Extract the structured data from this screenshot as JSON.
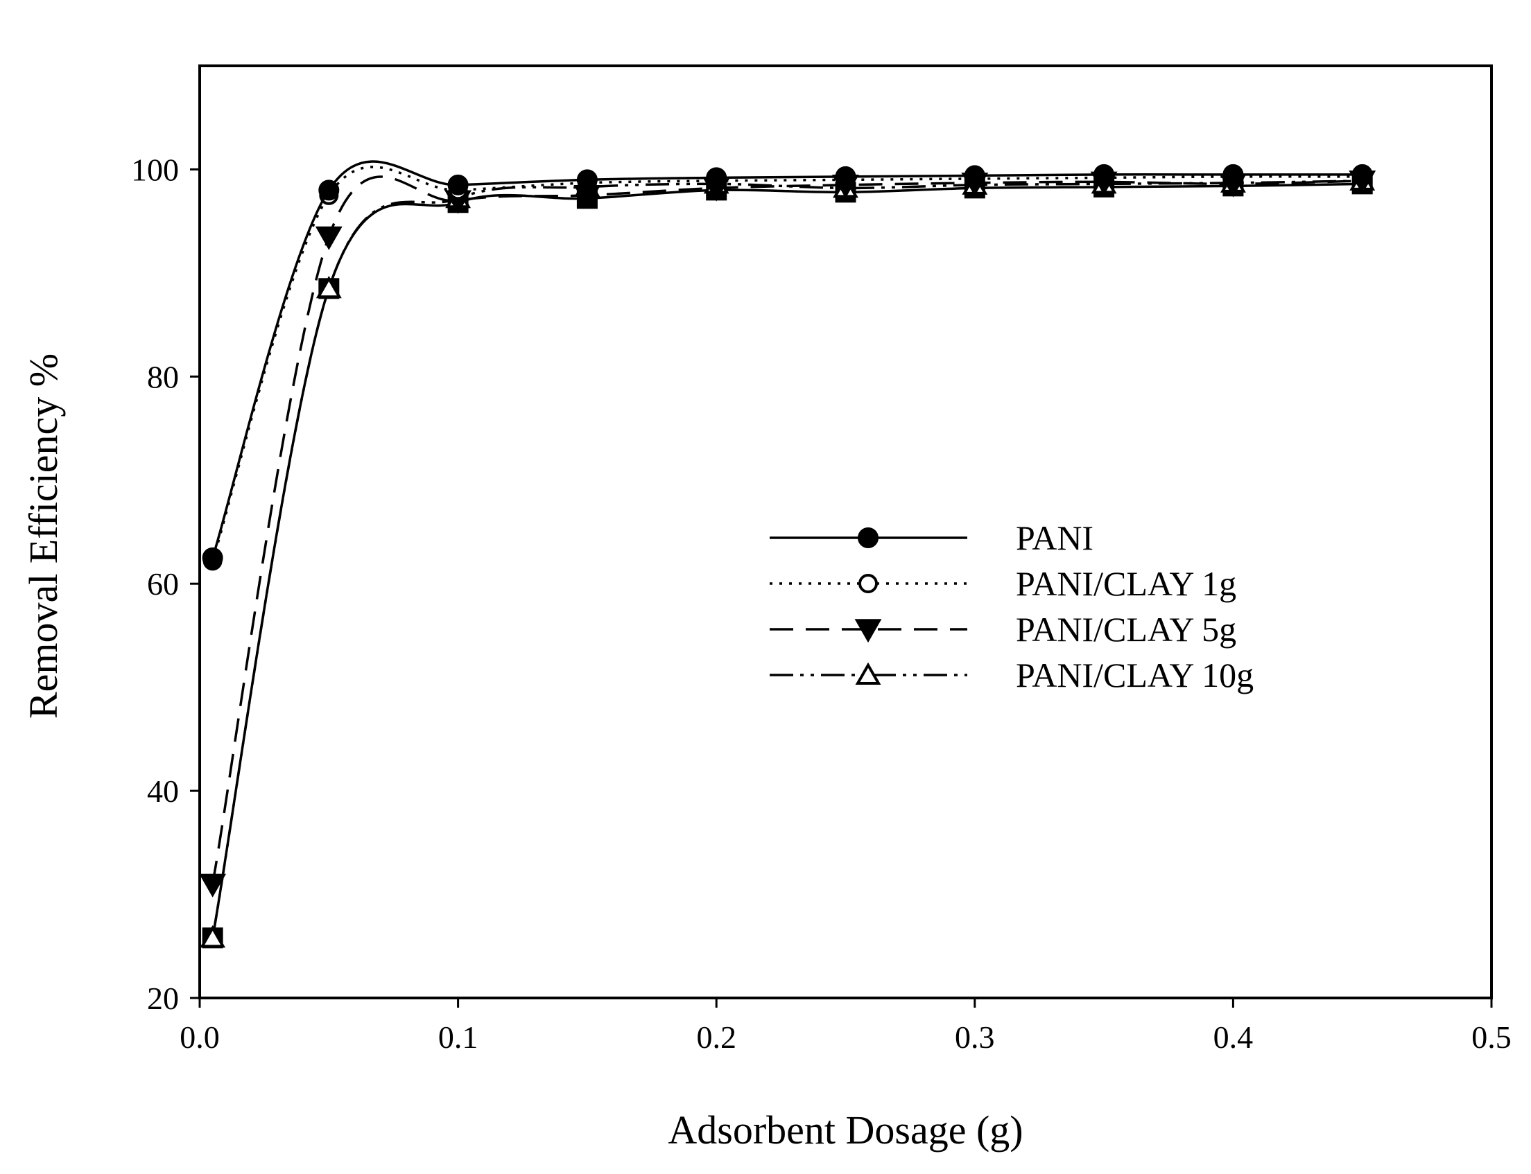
{
  "chart_data": {
    "type": "line",
    "xlabel": "Adsorbent Dosage (g)",
    "ylabel": "Removal Efficiency %",
    "xlim": [
      0.0,
      0.5
    ],
    "ylim": [
      20,
      110
    ],
    "xticks": [
      "0.0",
      "0.1",
      "0.2",
      "0.3",
      "0.4",
      "0.5"
    ],
    "yticks": [
      "20",
      "40",
      "60",
      "80",
      "100"
    ],
    "grid": false,
    "legend_position": "center-right",
    "x": [
      0.005,
      0.05,
      0.1,
      0.15,
      0.2,
      0.25,
      0.3,
      0.35,
      0.4,
      0.45
    ],
    "series": [
      {
        "name": "PANI",
        "marker": "filled-circle",
        "line_style": "solid",
        "values": [
          62.5,
          98.0,
          98.5,
          99.0,
          99.2,
          99.3,
          99.4,
          99.5,
          99.5,
          99.5
        ]
      },
      {
        "name": "PANI/CLAY 1g",
        "marker": "open-circle",
        "line_style": "dotted",
        "values": [
          62.2,
          97.5,
          98.0,
          98.7,
          98.9,
          99.0,
          99.1,
          99.2,
          99.3,
          99.3
        ]
      },
      {
        "name": "PANI/CLAY 5g",
        "marker": "filled-triangle-down",
        "line_style": "dashed",
        "values": [
          31.0,
          93.5,
          97.0,
          97.5,
          98.2,
          98.5,
          98.7,
          98.8,
          98.6,
          98.9
        ]
      },
      {
        "name": "PANI/CLAY 10g",
        "marker": "open-triangle-up",
        "line_style": "dash-dot-dot",
        "values": [
          25.8,
          88.5,
          97.2,
          98.3,
          98.6,
          98.2,
          98.5,
          98.6,
          98.7,
          98.9
        ]
      },
      {
        "name": "",
        "marker": "filled-square",
        "line_style": "solid",
        "values": [
          25.8,
          88.5,
          96.8,
          97.2,
          98.0,
          97.8,
          98.2,
          98.3,
          98.4,
          98.6
        ]
      }
    ]
  }
}
